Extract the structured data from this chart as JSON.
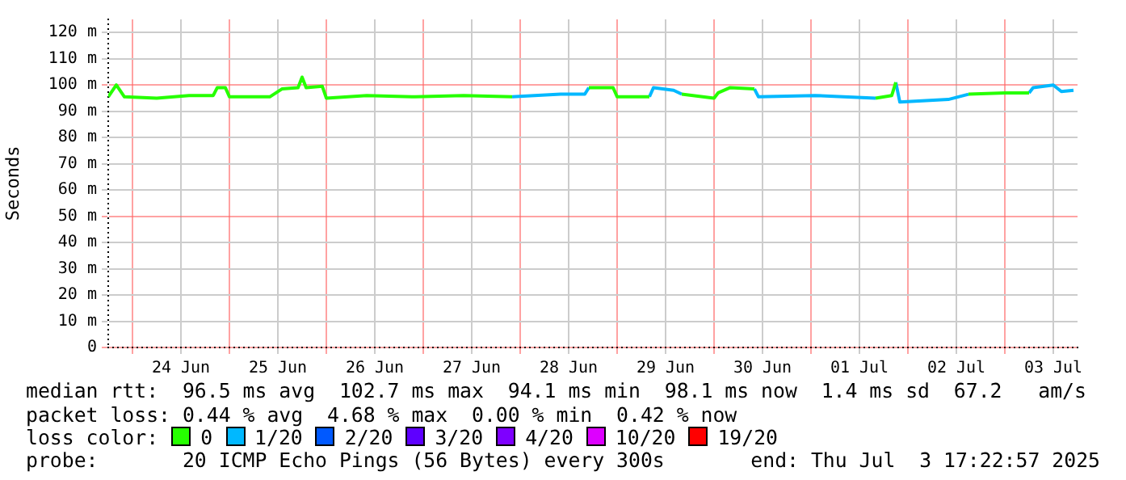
{
  "chart_data": {
    "type": "line",
    "ylabel": "Seconds",
    "x": [
      "2025-06-23T18:00",
      "2025-06-23T20:00",
      "2025-06-23T22:00",
      "2025-06-24T06:00",
      "2025-06-24T14:00",
      "2025-06-24T20:00",
      "2025-06-24T21:00",
      "2025-06-24T23:00",
      "2025-06-25T00:00",
      "2025-06-25T10:00",
      "2025-06-25T13:00",
      "2025-06-25T17:00",
      "2025-06-25T18:00",
      "2025-06-25T19:00",
      "2025-06-25T23:00",
      "2025-06-26T00:00",
      "2025-06-26T10:00",
      "2025-06-26T22:00",
      "2025-06-27T10:00",
      "2025-06-27T22:00",
      "2025-06-28T10:00",
      "2025-06-28T16:00",
      "2025-06-28T17:00",
      "2025-06-28T23:00",
      "2025-06-29T00:00",
      "2025-06-29T08:00",
      "2025-06-29T09:00",
      "2025-06-29T14:00",
      "2025-06-29T16:00",
      "2025-06-30T00:00",
      "2025-06-30T01:00",
      "2025-06-30T04:00",
      "2025-06-30T10:00",
      "2025-06-30T11:00",
      "2025-07-01T01:00",
      "2025-07-01T16:00",
      "2025-07-01T20:00",
      "2025-07-01T21:00",
      "2025-07-01T22:00",
      "2025-07-02T10:00",
      "2025-07-02T15:00",
      "2025-07-03T00:00",
      "2025-07-03T06:00",
      "2025-07-03T07:00",
      "2025-07-03T12:00",
      "2025-07-03T14:00",
      "2025-07-03T17:00"
    ],
    "series": [
      {
        "name": "0",
        "color": "#26ff00",
        "values": [
          95.5,
          100,
          95.5,
          95,
          96,
          96,
          99,
          99,
          95.5,
          95.5,
          98.5,
          99,
          103,
          99,
          99.5,
          95,
          96,
          95.5,
          96,
          95.5,
          null,
          null,
          99,
          99,
          95.5,
          95.5,
          null,
          null,
          96.5,
          95,
          97,
          99,
          98.5,
          null,
          null,
          95,
          96,
          101,
          null,
          null,
          96.5,
          97,
          97,
          null,
          null,
          null,
          null
        ]
      },
      {
        "name": "1/20",
        "color": "#00b8ff",
        "values": [
          null,
          null,
          null,
          null,
          null,
          null,
          null,
          null,
          null,
          null,
          null,
          null,
          null,
          null,
          null,
          null,
          null,
          null,
          null,
          95.5,
          96.5,
          96.5,
          99,
          null,
          null,
          95.5,
          99,
          98,
          96.5,
          null,
          null,
          null,
          98.5,
          95.5,
          96,
          95,
          null,
          101,
          93.5,
          94.5,
          96.5,
          null,
          97,
          99,
          100,
          97.5,
          98
        ]
      },
      {
        "name": "2/20",
        "color": "#0059ff",
        "values": [
          null,
          null,
          null,
          null,
          null,
          null,
          null,
          null,
          null,
          null,
          null,
          null,
          null,
          null,
          null,
          null,
          null,
          null,
          null,
          null,
          null,
          null,
          null,
          null,
          null,
          null,
          null,
          null,
          null,
          null,
          null,
          null,
          null,
          null,
          null,
          null,
          null,
          null,
          null,
          null,
          null,
          null,
          null,
          null,
          null,
          null,
          null
        ]
      },
      {
        "name": "3/20",
        "color": "#5e00ff",
        "values": [
          null,
          null,
          null,
          null,
          null,
          null,
          null,
          null,
          null,
          null,
          null,
          null,
          null,
          null,
          null,
          null,
          null,
          null,
          null,
          null,
          null,
          null,
          null,
          null,
          null,
          null,
          null,
          null,
          null,
          null,
          null,
          null,
          null,
          null,
          null,
          null,
          null,
          null,
          null,
          null,
          null,
          null,
          null,
          null,
          null,
          null,
          null
        ]
      },
      {
        "name": "4/20",
        "color": "#7e00ff",
        "values": [
          null,
          null,
          null,
          null,
          null,
          null,
          null,
          null,
          null,
          null,
          null,
          null,
          null,
          null,
          null,
          null,
          null,
          null,
          null,
          null,
          null,
          null,
          null,
          null,
          null,
          null,
          null,
          null,
          null,
          null,
          null,
          null,
          null,
          null,
          null,
          null,
          null,
          null,
          null,
          null,
          null,
          null,
          null,
          null,
          null,
          null,
          null
        ]
      },
      {
        "name": "10/20",
        "color": "#dd00ff",
        "values": [
          null,
          null,
          null,
          null,
          null,
          null,
          null,
          null,
          null,
          null,
          null,
          null,
          null,
          null,
          null,
          null,
          null,
          null,
          null,
          null,
          null,
          null,
          null,
          null,
          null,
          null,
          null,
          null,
          null,
          null,
          null,
          null,
          null,
          null,
          null,
          null,
          null,
          null,
          null,
          null,
          null,
          null,
          null,
          null,
          null,
          null,
          null
        ]
      },
      {
        "name": "19/20",
        "color": "#ff0000",
        "values": [
          null,
          null,
          null,
          null,
          null,
          null,
          null,
          null,
          null,
          null,
          null,
          null,
          null,
          null,
          null,
          null,
          null,
          null,
          null,
          null,
          null,
          null,
          null,
          null,
          null,
          null,
          null,
          null,
          null,
          null,
          null,
          null,
          null,
          null,
          null,
          null,
          null,
          null,
          null,
          null,
          null,
          null,
          null,
          null,
          null,
          null,
          null
        ]
      }
    ],
    "xlim": [
      "2025-06-23T18:00",
      "2025-07-03T18:00"
    ],
    "xticks": [
      {
        "value": "2025-06-24T00:00",
        "label": null
      },
      {
        "value": "2025-06-24T12:00",
        "label": "24 Jun"
      },
      {
        "value": "2025-06-25T00:00",
        "label": null
      },
      {
        "value": "2025-06-25T12:00",
        "label": "25 Jun"
      },
      {
        "value": "2025-06-26T00:00",
        "label": null
      },
      {
        "value": "2025-06-26T12:00",
        "label": "26 Jun"
      },
      {
        "value": "2025-06-27T00:00",
        "label": null
      },
      {
        "value": "2025-06-27T12:00",
        "label": "27 Jun"
      },
      {
        "value": "2025-06-28T00:00",
        "label": null
      },
      {
        "value": "2025-06-28T12:00",
        "label": "28 Jun"
      },
      {
        "value": "2025-06-29T00:00",
        "label": null
      },
      {
        "value": "2025-06-29T12:00",
        "label": "29 Jun"
      },
      {
        "value": "2025-06-30T00:00",
        "label": null
      },
      {
        "value": "2025-06-30T12:00",
        "label": "30 Jun"
      },
      {
        "value": "2025-07-01T00:00",
        "label": null
      },
      {
        "value": "2025-07-01T12:00",
        "label": "01 Jul"
      },
      {
        "value": "2025-07-02T00:00",
        "label": null
      },
      {
        "value": "2025-07-02T12:00",
        "label": "02 Jul"
      },
      {
        "value": "2025-07-03T00:00",
        "label": null
      },
      {
        "value": "2025-07-03T12:00",
        "label": "03 Jul"
      }
    ],
    "ylim": [
      0,
      125
    ],
    "yticks": [
      0,
      {
        "value": 10,
        "label": "10 m"
      },
      {
        "value": 20,
        "label": "20 m"
      },
      {
        "value": 30,
        "label": "30 m"
      },
      {
        "value": 40,
        "label": "40 m"
      },
      {
        "value": 50,
        "label": "50 m"
      },
      {
        "value": 60,
        "label": "60 m"
      },
      {
        "value": 70,
        "label": "70 m"
      },
      {
        "value": 80,
        "label": "80 m"
      },
      {
        "value": 90,
        "label": "90 m"
      },
      {
        "value": 100,
        "label": "100 m"
      },
      {
        "value": 110,
        "label": "110 m"
      },
      {
        "value": 120,
        "label": "120 m"
      }
    ],
    "grid": true,
    "legend": "bottom",
    "legend_title": "loss color:",
    "marker": "none",
    "line_style": "solid",
    "annotations": [
      "median rtt:  96.5 ms avg  102.7 ms max  94.1 ms min  98.1 ms now  1.4 ms sd  67.2   am/s",
      "packet loss: 0.44 % avg  4.68 % max  0.00 % min  0.42 % now",
      "probe:       20 ICMP Echo Pings (56 Bytes) every 300s",
      "end: Thu Jul  3 17:22:57 2025"
    ]
  }
}
